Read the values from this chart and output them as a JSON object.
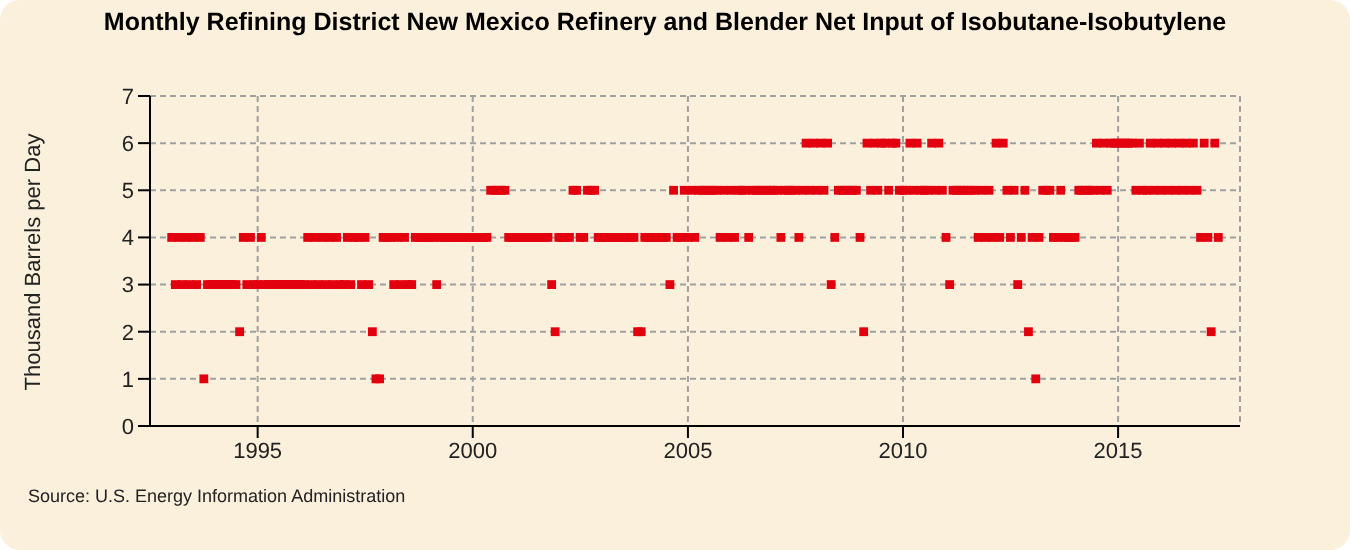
{
  "chart_data": {
    "type": "scatter",
    "title": "Monthly Refining District New Mexico Refinery and Blender Net Input of Isobutane-Isobutylene",
    "ylabel": "Thousand Barrels per Day",
    "annotations": [
      "Source: U.S. Energy Information Administration"
    ],
    "xlim": [
      "1992-07",
      "2017-11"
    ],
    "xticks": [
      "1995",
      "2000",
      "2005",
      "2010",
      "2015"
    ],
    "ylim": [
      0,
      7
    ],
    "yticks": [
      0,
      1,
      2,
      3,
      4,
      5,
      6,
      7
    ],
    "grid": true,
    "marker": "square",
    "series": [
      {
        "color": "#e2000f",
        "x": [
          "1993-01",
          "1993-02",
          "1993-03",
          "1993-04",
          "1993-05",
          "1993-06",
          "1993-07",
          "1993-08",
          "1993-09",
          "1993-10",
          "1993-11",
          "1993-12",
          "1994-01",
          "1994-02",
          "1994-03",
          "1994-04",
          "1994-05",
          "1994-06",
          "1994-07",
          "1994-08",
          "1994-09",
          "1994-10",
          "1994-11",
          "1994-12",
          "1995-01",
          "1995-02",
          "1995-03",
          "1995-04",
          "1995-05",
          "1995-06",
          "1995-07",
          "1995-08",
          "1995-09",
          "1995-10",
          "1995-11",
          "1995-12",
          "1996-01",
          "1996-02",
          "1996-03",
          "1996-04",
          "1996-05",
          "1996-06",
          "1996-07",
          "1996-08",
          "1996-09",
          "1996-10",
          "1996-11",
          "1996-12",
          "1997-01",
          "1997-02",
          "1997-03",
          "1997-04",
          "1997-05",
          "1997-06",
          "1997-07",
          "1997-08",
          "1997-09",
          "1997-10",
          "1997-11",
          "1997-12",
          "1998-01",
          "1998-02",
          "1998-03",
          "1998-04",
          "1998-05",
          "1998-06",
          "1998-07",
          "1998-08",
          "1998-09",
          "1998-10",
          "1998-11",
          "1998-12",
          "1999-01",
          "1999-02",
          "1999-03",
          "1999-04",
          "1999-05",
          "1999-06",
          "1999-07",
          "1999-08",
          "1999-09",
          "1999-10",
          "1999-11",
          "1999-12",
          "2000-01",
          "2000-02",
          "2000-03",
          "2000-04",
          "2000-05",
          "2000-06",
          "2000-07",
          "2000-08",
          "2000-09",
          "2000-10",
          "2000-11",
          "2000-12",
          "2001-01",
          "2001-02",
          "2001-03",
          "2001-04",
          "2001-05",
          "2001-06",
          "2001-07",
          "2001-08",
          "2001-09",
          "2001-10",
          "2001-11",
          "2001-12",
          "2002-01",
          "2002-02",
          "2002-03",
          "2002-04",
          "2002-05",
          "2002-06",
          "2002-07",
          "2002-08",
          "2002-09",
          "2002-10",
          "2002-11",
          "2002-12",
          "2003-01",
          "2003-02",
          "2003-03",
          "2003-04",
          "2003-05",
          "2003-06",
          "2003-07",
          "2003-08",
          "2003-09",
          "2003-10",
          "2003-11",
          "2003-12",
          "2004-01",
          "2004-02",
          "2004-03",
          "2004-04",
          "2004-05",
          "2004-06",
          "2004-07",
          "2004-08",
          "2004-09",
          "2004-10",
          "2004-11",
          "2004-12",
          "2005-01",
          "2005-02",
          "2005-03",
          "2005-04",
          "2005-05",
          "2005-06",
          "2005-07",
          "2005-08",
          "2005-09",
          "2005-10",
          "2005-11",
          "2005-12",
          "2006-01",
          "2006-02",
          "2006-03",
          "2006-04",
          "2006-05",
          "2006-06",
          "2006-07",
          "2006-08",
          "2006-09",
          "2006-10",
          "2006-11",
          "2006-12",
          "2007-01",
          "2007-02",
          "2007-03",
          "2007-04",
          "2007-05",
          "2007-06",
          "2007-07",
          "2007-08",
          "2007-09",
          "2007-10",
          "2007-11",
          "2007-12",
          "2008-01",
          "2008-02",
          "2008-03",
          "2008-04",
          "2008-05",
          "2008-06",
          "2008-07",
          "2008-08",
          "2008-09",
          "2008-10",
          "2008-11",
          "2008-12",
          "2009-01",
          "2009-02",
          "2009-03",
          "2009-04",
          "2009-05",
          "2009-06",
          "2009-07",
          "2009-08",
          "2009-09",
          "2009-10",
          "2009-11",
          "2009-12",
          "2010-01",
          "2010-02",
          "2010-03",
          "2010-04",
          "2010-05",
          "2010-06",
          "2010-07",
          "2010-08",
          "2010-09",
          "2010-10",
          "2010-11",
          "2010-12",
          "2011-01",
          "2011-02",
          "2011-03",
          "2011-04",
          "2011-05",
          "2011-06",
          "2011-07",
          "2011-08",
          "2011-09",
          "2011-10",
          "2011-11",
          "2011-12",
          "2012-01",
          "2012-02",
          "2012-03",
          "2012-04",
          "2012-05",
          "2012-06",
          "2012-07",
          "2012-08",
          "2012-09",
          "2012-10",
          "2012-11",
          "2012-12",
          "2013-01",
          "2013-02",
          "2013-03",
          "2013-04",
          "2013-05",
          "2013-06",
          "2013-07",
          "2013-08",
          "2013-09",
          "2013-10",
          "2013-11",
          "2013-12",
          "2014-01",
          "2014-02",
          "2014-03",
          "2014-04",
          "2014-05",
          "2014-06",
          "2014-07",
          "2014-08",
          "2014-09",
          "2014-10",
          "2014-11",
          "2014-12",
          "2015-01",
          "2015-02",
          "2015-03",
          "2015-04",
          "2015-05",
          "2015-06",
          "2015-07",
          "2015-08",
          "2015-09",
          "2015-10",
          "2015-11",
          "2015-12",
          "2016-01",
          "2016-02",
          "2016-03",
          "2016-04",
          "2016-05",
          "2016-06",
          "2016-07",
          "2016-08",
          "2016-09",
          "2016-10",
          "2016-11",
          "2016-12",
          "2017-01",
          "2017-02",
          "2017-03",
          "2017-04",
          "2017-05"
        ],
        "values": [
          4,
          3,
          4,
          3,
          4,
          3,
          4,
          3,
          4,
          1,
          3,
          3,
          3,
          3,
          3,
          3,
          3,
          3,
          3,
          2,
          4,
          3,
          4,
          3,
          3,
          4,
          3,
          3,
          3,
          3,
          3,
          3,
          3,
          3,
          3,
          3,
          3,
          3,
          4,
          3,
          4,
          3,
          4,
          3,
          4,
          3,
          4,
          3,
          3,
          4,
          3,
          4,
          4,
          3,
          4,
          3,
          2,
          1,
          1,
          4,
          4,
          4,
          3,
          4,
          3,
          4,
          3,
          3,
          4,
          4,
          4,
          4,
          4,
          4,
          3,
          4,
          4,
          4,
          4,
          4,
          4,
          4,
          4,
          4,
          4,
          4,
          4,
          4,
          4,
          5,
          5,
          5,
          5,
          5,
          4,
          4,
          4,
          4,
          4,
          4,
          4,
          4,
          4,
          4,
          4,
          4,
          3,
          2,
          4,
          4,
          4,
          4,
          5,
          5,
          4,
          4,
          5,
          5,
          5,
          4,
          4,
          4,
          4,
          4,
          4,
          4,
          4,
          4,
          4,
          4,
          2,
          2,
          4,
          4,
          4,
          4,
          4,
          4,
          4,
          3,
          5,
          4,
          4,
          5,
          4,
          5,
          4,
          5,
          5,
          5,
          5,
          5,
          5,
          4,
          5,
          4,
          5,
          4,
          5,
          5,
          5,
          4,
          5,
          5,
          5,
          5,
          5,
          5,
          5,
          5,
          4,
          5,
          5,
          5,
          5,
          4,
          5,
          6,
          5,
          6,
          5,
          6,
          5,
          6,
          3,
          4,
          5,
          5,
          5,
          5,
          5,
          5,
          4,
          2,
          6,
          5,
          6,
          5,
          6,
          6,
          5,
          6,
          6,
          5,
          5,
          5,
          6,
          5,
          6,
          5,
          5,
          5,
          6,
          5,
          6,
          5,
          4,
          3,
          5,
          5,
          5,
          5,
          5,
          5,
          5,
          4,
          5,
          4,
          5,
          4,
          6,
          4,
          6,
          5,
          4,
          5,
          3,
          4,
          5,
          2,
          4,
          1,
          4,
          5,
          5,
          5,
          4,
          4,
          5,
          4,
          4,
          4,
          4,
          5,
          5,
          5,
          5,
          5,
          6,
          5,
          6,
          5,
          6,
          6,
          6,
          6,
          6,
          6,
          6,
          5,
          6,
          5,
          5,
          6,
          5,
          6,
          5,
          6,
          5,
          6,
          5,
          6,
          5,
          6,
          5,
          6,
          5,
          4,
          6,
          4,
          2,
          6,
          4
        ]
      }
    ]
  }
}
